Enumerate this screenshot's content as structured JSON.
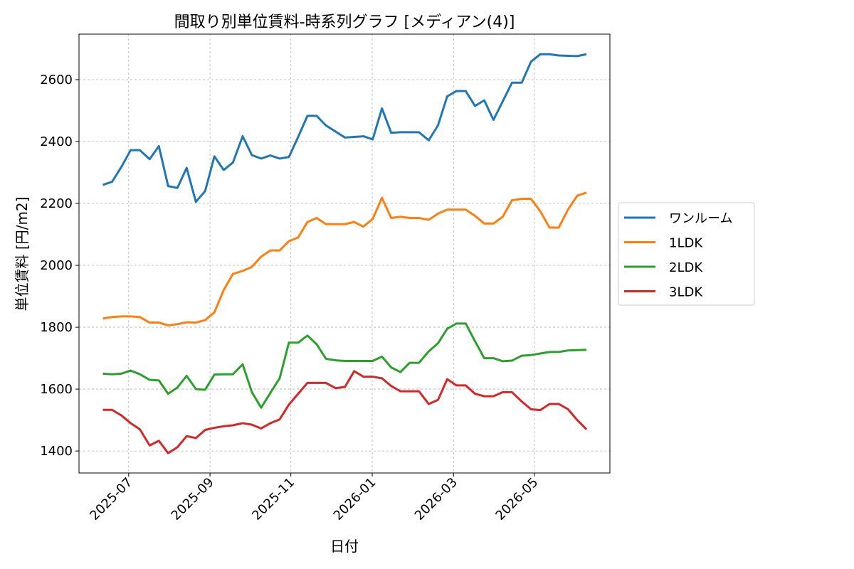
{
  "chart_data": {
    "type": "line",
    "title": "間取り別単位賃料-時系列グラフ [メディアン(4)]",
    "x_label": "日付",
    "y_label": "単位賃料 [円/m2]",
    "x": [
      2025.447,
      2025.466,
      2025.485,
      2025.504,
      2025.523,
      2025.543,
      2025.562,
      2025.581,
      2025.6,
      2025.619,
      2025.638,
      2025.657,
      2025.676,
      2025.695,
      2025.714,
      2025.734,
      2025.753,
      2025.772,
      2025.791,
      2025.81,
      2025.829,
      2025.848,
      2025.867,
      2025.886,
      2025.905,
      2025.925,
      2025.944,
      2025.963,
      2025.982,
      2026.001,
      2026.02,
      2026.039,
      2026.058,
      2026.077,
      2026.096,
      2026.116,
      2026.135,
      2026.154,
      2026.173,
      2026.192,
      2026.211,
      2026.23,
      2026.249,
      2026.268,
      2026.287,
      2026.307,
      2026.326,
      2026.345,
      2026.364,
      2026.383,
      2026.402,
      2026.421,
      2026.44
    ],
    "series": [
      {
        "name": "ワンルーム",
        "color": "#1f77b4",
        "values": [
          2260,
          2270,
          2318,
          2372,
          2372,
          2343,
          2385,
          2256,
          2250,
          2315,
          2205,
          2240,
          2352,
          2308,
          2332,
          2417,
          2356,
          2345,
          2355,
          2345,
          2350,
          2415,
          2483,
          2483,
          2452,
          2432,
          2413,
          2415,
          2417,
          2407,
          2507,
          2428,
          2430,
          2430,
          2430,
          2404,
          2452,
          2546,
          2563,
          2563,
          2515,
          2533,
          2470,
          2530,
          2590,
          2590,
          2658,
          2682,
          2682,
          2678,
          2677,
          2676,
          2682
        ]
      },
      {
        "name": "1LDK",
        "color": "#ff7f0e",
        "values": [
          1828,
          1833,
          1835,
          1835,
          1833,
          1815,
          1815,
          1806,
          1810,
          1816,
          1815,
          1823,
          1848,
          1920,
          1972,
          1982,
          1995,
          2028,
          2048,
          2048,
          2078,
          2090,
          2140,
          2153,
          2133,
          2133,
          2133,
          2140,
          2125,
          2150,
          2218,
          2153,
          2157,
          2153,
          2153,
          2147,
          2167,
          2180,
          2180,
          2180,
          2160,
          2135,
          2135,
          2157,
          2210,
          2215,
          2215,
          2175,
          2122,
          2122,
          2180,
          2225,
          2235
        ]
      },
      {
        "name": "2LDK",
        "color": "#2ca02c",
        "values": [
          1650,
          1648,
          1650,
          1660,
          1648,
          1630,
          1628,
          1585,
          1605,
          1643,
          1600,
          1598,
          1647,
          1648,
          1648,
          1680,
          1590,
          1540,
          1588,
          1635,
          1750,
          1750,
          1773,
          1745,
          1698,
          1693,
          1691,
          1691,
          1691,
          1691,
          1705,
          1670,
          1655,
          1685,
          1685,
          1722,
          1748,
          1795,
          1812,
          1812,
          1755,
          1700,
          1700,
          1690,
          1692,
          1708,
          1710,
          1715,
          1720,
          1720,
          1725,
          1726,
          1727
        ]
      },
      {
        "name": "3LDK",
        "color": "#d62728",
        "values": [
          1533,
          1533,
          1515,
          1490,
          1470,
          1418,
          1433,
          1393,
          1412,
          1448,
          1442,
          1468,
          1475,
          1480,
          1483,
          1490,
          1485,
          1473,
          1490,
          1502,
          1550,
          1585,
          1620,
          1620,
          1620,
          1603,
          1607,
          1658,
          1640,
          1640,
          1635,
          1610,
          1593,
          1593,
          1593,
          1552,
          1565,
          1632,
          1612,
          1612,
          1585,
          1577,
          1577,
          1590,
          1590,
          1560,
          1535,
          1532,
          1552,
          1552,
          1535,
          1500,
          1470
        ]
      }
    ],
    "xlim": [
      2025.398,
      2026.488
    ],
    "xticks": [
      {
        "value": 2025.5,
        "label": "2025-07"
      },
      {
        "value": 2025.667,
        "label": "2025-09"
      },
      {
        "value": 2025.833,
        "label": "2025-11"
      },
      {
        "value": 2026.0,
        "label": "2026-01"
      },
      {
        "value": 2026.167,
        "label": "2026-03"
      },
      {
        "value": 2026.333,
        "label": "2026-05"
      }
    ],
    "ylim": [
      1329,
      2747
    ],
    "yticks": [
      1400,
      1600,
      1800,
      2000,
      2200,
      2400,
      2600
    ],
    "grid": true,
    "legend": "right"
  }
}
